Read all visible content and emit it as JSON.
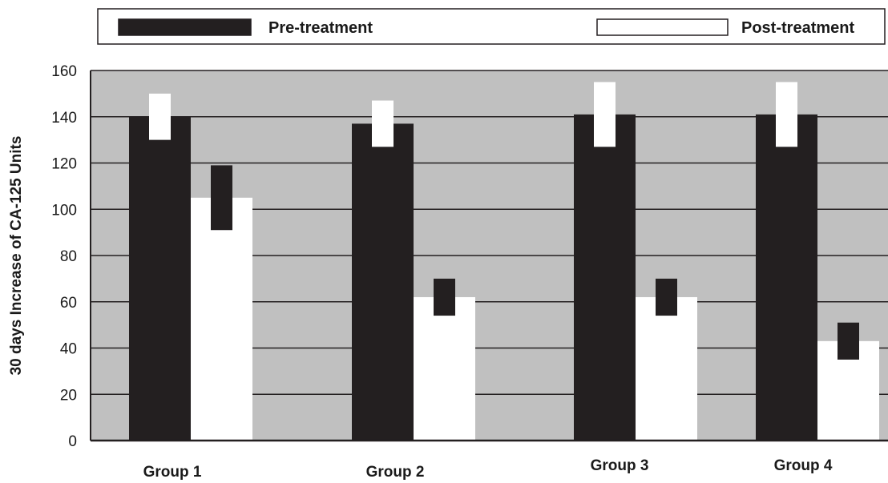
{
  "chart_data": {
    "type": "bar",
    "categories": [
      "Group 1",
      "Group 2",
      "Group 3",
      "Group 4"
    ],
    "series": [
      {
        "name": "Pre-treatment",
        "values": [
          140,
          137,
          141,
          141
        ],
        "error": [
          10,
          10,
          14,
          14
        ],
        "color": "#231f20"
      },
      {
        "name": "Post-treatment",
        "values": [
          105,
          62,
          62,
          43
        ],
        "error": [
          14,
          8,
          8,
          8
        ],
        "color": "#ffffff"
      }
    ],
    "xlabel": "",
    "ylabel": "30 days Increase of CA-125 Units",
    "ylim": [
      0,
      160
    ],
    "yticks": [
      0,
      20,
      40,
      60,
      80,
      100,
      120,
      140,
      160
    ],
    "grid": true,
    "legend": "top",
    "plot_background": "#c0c0c0",
    "title": ""
  }
}
